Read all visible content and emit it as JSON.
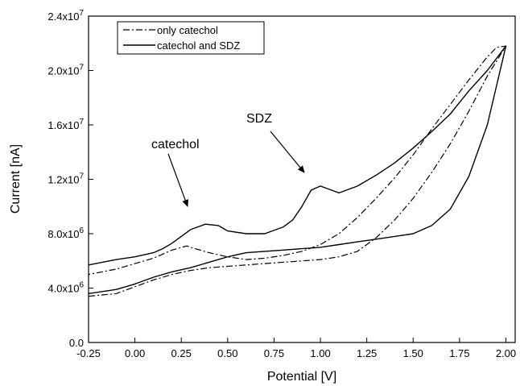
{
  "chart_data": {
    "type": "line",
    "xlabel": "Potential [V]",
    "ylabel": "Current [nA]",
    "xlim": [
      -0.25,
      2.05
    ],
    "ylim": [
      0,
      24000000
    ],
    "x_ticks": [
      -0.25,
      0.0,
      0.25,
      0.5,
      0.75,
      1.0,
      1.25,
      1.5,
      1.75,
      2.0
    ],
    "x_tick_labels": [
      "-0.25",
      "0.00",
      "0.25",
      "0.50",
      "0.75",
      "1.00",
      "1.25",
      "1.50",
      "1.75",
      "2.00"
    ],
    "y_ticks": [
      {
        "value": 0,
        "mantissa": "0.0",
        "exp": ""
      },
      {
        "value": 4000000,
        "mantissa": "4.0x10",
        "exp": "6"
      },
      {
        "value": 8000000,
        "mantissa": "8.0x10",
        "exp": "6"
      },
      {
        "value": 12000000,
        "mantissa": "1.2x10",
        "exp": "7"
      },
      {
        "value": 16000000,
        "mantissa": "1.6x10",
        "exp": "7"
      },
      {
        "value": 20000000,
        "mantissa": "2.0x10",
        "exp": "7"
      },
      {
        "value": 24000000,
        "mantissa": "2.4x10",
        "exp": "7"
      }
    ],
    "legend": {
      "position": "top-left",
      "entries": [
        {
          "label": "only catechol",
          "style": "dash-dot"
        },
        {
          "label": "catechol and SDZ",
          "style": "solid"
        }
      ]
    },
    "series": [
      {
        "name": "only catechol",
        "style": "dash-dot",
        "x": [
          -0.25,
          -0.1,
          0.0,
          0.1,
          0.2,
          0.3,
          0.4,
          0.5,
          0.6,
          0.7,
          0.8,
          0.9,
          1.0,
          1.1,
          1.2,
          1.3,
          1.4,
          1.5,
          1.6,
          1.7,
          1.8,
          1.9,
          2.0,
          1.95,
          1.9,
          1.8,
          1.7,
          1.6,
          1.5,
          1.4,
          1.3,
          1.2,
          1.1,
          1.0,
          0.9,
          0.8,
          0.7,
          0.6,
          0.5,
          0.4,
          0.3,
          0.28,
          0.2,
          0.1,
          0.0,
          -0.1,
          -0.25
        ],
        "y": [
          3400000,
          3600000,
          4100000,
          4600000,
          5000000,
          5300000,
          5500000,
          5600000,
          5700000,
          5800000,
          5900000,
          6000000,
          6100000,
          6300000,
          6700000,
          7700000,
          9000000,
          10600000,
          12500000,
          14600000,
          17000000,
          19600000,
          21800000,
          21700000,
          21000000,
          19300000,
          17500000,
          15700000,
          13800000,
          12100000,
          10600000,
          9200000,
          8000000,
          7200000,
          6700000,
          6400000,
          6200000,
          6100000,
          6300000,
          6600000,
          7000000,
          7100000,
          6800000,
          6200000,
          5800000,
          5400000,
          5000000
        ]
      },
      {
        "name": "catechol and SDZ",
        "style": "solid",
        "x": [
          -0.25,
          -0.1,
          0.0,
          0.1,
          0.2,
          0.3,
          0.4,
          0.5,
          0.6,
          0.7,
          0.8,
          0.9,
          1.0,
          1.1,
          1.2,
          1.3,
          1.4,
          1.5,
          1.6,
          1.7,
          1.8,
          1.9,
          2.0,
          1.9,
          1.8,
          1.7,
          1.6,
          1.5,
          1.4,
          1.3,
          1.2,
          1.1,
          1.0,
          0.95,
          0.9,
          0.85,
          0.8,
          0.7,
          0.6,
          0.5,
          0.45,
          0.38,
          0.3,
          0.2,
          0.15,
          0.1,
          0.0,
          -0.1,
          -0.25
        ],
        "y": [
          3600000,
          3900000,
          4300000,
          4800000,
          5200000,
          5500000,
          5900000,
          6300000,
          6600000,
          6700000,
          6800000,
          6900000,
          7000000,
          7200000,
          7400000,
          7600000,
          7800000,
          8000000,
          8600000,
          9800000,
          12200000,
          16000000,
          21800000,
          20000000,
          18500000,
          16800000,
          15500000,
          14300000,
          13200000,
          12300000,
          11500000,
          11000000,
          11500000,
          11200000,
          10000000,
          9000000,
          8500000,
          8000000,
          8000000,
          8200000,
          8600000,
          8700000,
          8300000,
          7300000,
          6900000,
          6600000,
          6300000,
          6100000,
          5700000
        ]
      }
    ],
    "annotations": [
      {
        "text": "catechol",
        "arrow_to": [
          0.38,
          8700000
        ]
      },
      {
        "text": "SDZ",
        "arrow_to": [
          0.97,
          11400000
        ]
      }
    ],
    "grid": false
  }
}
